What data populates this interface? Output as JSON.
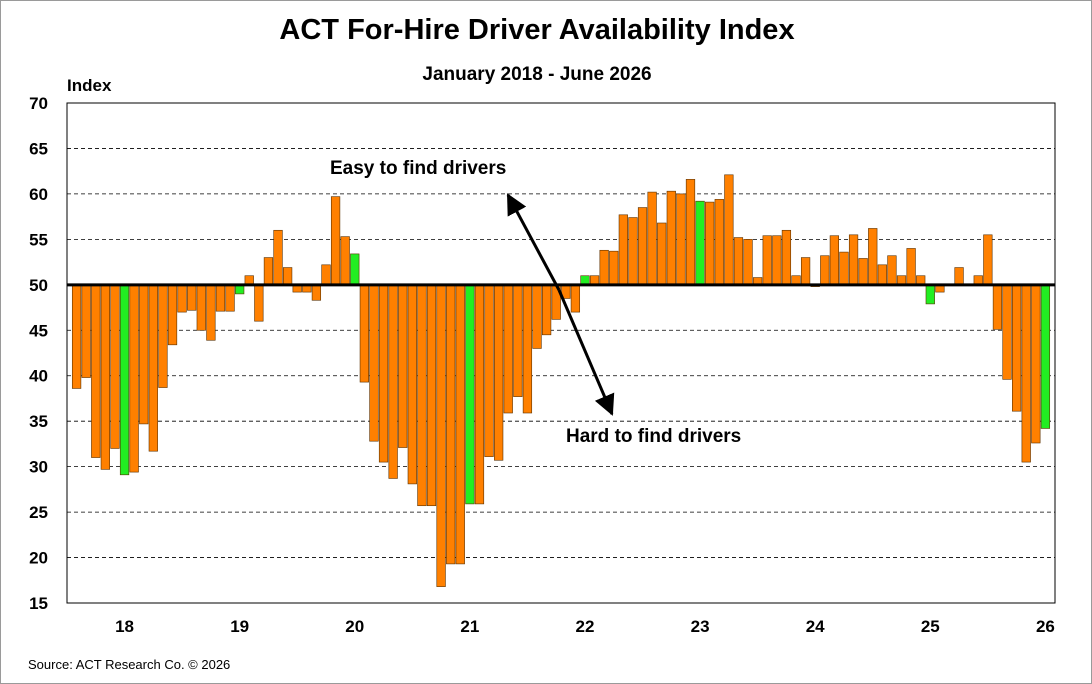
{
  "chart_data": {
    "type": "bar",
    "title": "ACT For-Hire Driver Availability Index",
    "subtitle": "January 2018 - June 2026",
    "ylabel": "Index",
    "xlabel": "",
    "ylim": [
      15,
      70
    ],
    "yticks": [
      15,
      20,
      25,
      30,
      35,
      40,
      45,
      50,
      55,
      60,
      65,
      70
    ],
    "baseline": 50,
    "x_start": "2017-07",
    "xtick_labels": [
      "18",
      "19",
      "20",
      "21",
      "22",
      "23",
      "24",
      "25",
      "26"
    ],
    "grid": "horizontal dashed",
    "colors": {
      "orange": "#FF8000",
      "green": "#22EE22",
      "bar_edge": "#5a3000",
      "baseline": "#000000"
    },
    "series": [
      {
        "values": [
          38.6,
          39.8,
          31.0,
          29.7,
          32.0,
          29.1,
          29.4,
          34.7,
          31.7,
          38.7,
          43.4,
          47.0,
          47.2,
          45.0,
          43.9,
          47.1,
          47.1,
          49.0,
          51.0,
          46.0,
          53.0,
          56.0,
          51.9,
          49.2,
          49.2,
          48.3,
          52.2,
          59.7,
          55.3,
          53.4,
          39.3,
          32.8,
          30.5,
          28.7,
          32.1,
          28.1,
          25.7,
          25.7,
          16.8,
          19.3,
          19.3,
          25.9,
          25.9,
          31.1,
          30.7,
          35.9,
          37.7,
          35.9,
          43.0,
          44.5,
          46.2,
          48.5,
          47.0,
          51.0,
          51.0,
          53.8,
          53.7,
          57.7,
          57.4,
          58.5,
          60.2,
          56.8,
          60.3,
          60.0,
          61.6,
          59.2,
          59.1,
          59.4,
          62.1,
          55.2,
          55.0,
          50.8,
          55.4,
          55.4,
          56.0,
          51.0,
          53.0,
          49.8,
          53.2,
          55.4,
          53.6,
          55.5,
          52.9,
          56.2,
          52.2,
          53.2,
          51.0,
          54.0,
          51.0,
          47.9,
          49.2,
          50.0,
          51.9,
          50.0,
          51.0,
          55.5,
          45.1,
          39.6,
          36.1,
          30.5,
          32.6,
          34.2
        ],
        "green_indices": [
          5,
          17,
          29,
          41,
          53,
          65,
          89,
          101
        ]
      }
    ],
    "annotations": [
      "Easy to find drivers",
      "Hard to find drivers"
    ]
  },
  "source": "Source:  ACT Research Co. © 2026"
}
